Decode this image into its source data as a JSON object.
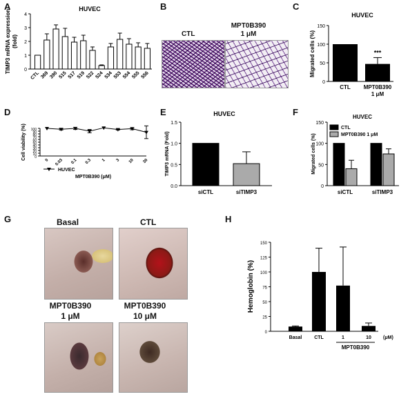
{
  "panels": {
    "A": {
      "letter": "A"
    },
    "B": {
      "letter": "B"
    },
    "C": {
      "letter": "C"
    },
    "D": {
      "letter": "D"
    },
    "E": {
      "letter": "E"
    },
    "F": {
      "letter": "F"
    },
    "G": {
      "letter": "G"
    },
    "H": {
      "letter": "H"
    }
  },
  "panelB": {
    "ctl_label": "CTL",
    "mpt_label": "MPT0B390",
    "mpt_dose": "1 μM"
  },
  "panelG": {
    "basal": "Basal",
    "ctl": "CTL",
    "mpt1_name": "MPT0B390",
    "mpt1_dose": "1 μM",
    "mpt10_name": "MPT0B390",
    "mpt10_dose": "10 μM"
  },
  "colors": {
    "bar_white": "#ffffff",
    "bar_black": "#000000",
    "bar_gray": "#aaaaaa"
  },
  "chart_data": [
    {
      "id": "A",
      "type": "bar",
      "title": "HUVEC",
      "ylabel": "TIMP3 mRNA expression (fold)",
      "ylabel_lines": [
        "TIMP3 mRNA expression",
        "(fold)"
      ],
      "ylim": [
        0,
        4
      ],
      "yticks": [
        0,
        1,
        2,
        3,
        4
      ],
      "categories": [
        "CTL",
        "369",
        "390",
        "515",
        "517",
        "519",
        "522",
        "524",
        "534",
        "553",
        "554",
        "555",
        "556"
      ],
      "values": [
        1.0,
        2.1,
        2.9,
        2.35,
        1.95,
        2.05,
        1.35,
        0.25,
        1.6,
        2.15,
        1.8,
        1.6,
        1.5
      ],
      "errors": [
        0.0,
        0.45,
        0.3,
        0.6,
        0.35,
        0.4,
        0.25,
        0.05,
        0.25,
        0.45,
        0.4,
        0.3,
        0.35
      ]
    },
    {
      "id": "C",
      "type": "bar",
      "title": "HUVEC",
      "ylabel": "Migrated cells (%)",
      "ylim": [
        0,
        150
      ],
      "yticks": [
        0,
        50,
        100,
        150
      ],
      "categories": [
        "CTL",
        "MPT0B390"
      ],
      "category_sub": [
        "",
        "1 μM"
      ],
      "values": [
        100,
        47
      ],
      "errors": [
        0,
        17
      ],
      "annotation": "***"
    },
    {
      "id": "D",
      "type": "line",
      "ylabel": "Cell viability (%)",
      "xlabel": "MPT0B390 (μM)",
      "ylim": [
        0,
        100
      ],
      "yticks": [
        0,
        10,
        20,
        30,
        40,
        50,
        60,
        70,
        80,
        90,
        100
      ],
      "x": [
        "0",
        "0.03",
        "0.1",
        "0.3",
        "1",
        "3",
        "10",
        "30"
      ],
      "values": [
        100,
        97,
        100,
        90,
        102,
        96,
        99,
        86
      ],
      "errors": [
        0,
        3,
        4,
        6,
        0,
        2,
        4,
        23
      ],
      "legend": "HUVEC"
    },
    {
      "id": "E",
      "type": "bar",
      "title": "HUVEC",
      "ylabel": "TIMP3 mRNA (Fold)",
      "ylim": [
        0,
        1.5
      ],
      "yticks": [
        "0.0",
        "0.5",
        "1.0",
        "1.5"
      ],
      "categories": [
        "siCTL",
        "siTIMP3"
      ],
      "values": [
        1.0,
        0.52
      ],
      "errors": [
        0,
        0.28
      ]
    },
    {
      "id": "F",
      "type": "bar",
      "title": "HUVEC",
      "ylabel": "Migrated cells (%)",
      "ylim": [
        0,
        150
      ],
      "yticks": [
        0,
        50,
        100,
        150
      ],
      "categories": [
        "siCTL",
        "siTIMP3"
      ],
      "series": [
        {
          "name": "CTL",
          "values": [
            100,
            100
          ],
          "errors": [
            0,
            0
          ]
        },
        {
          "name": "MPT0B390 1 μM",
          "values": [
            40,
            75
          ],
          "errors": [
            20,
            12
          ]
        }
      ]
    },
    {
      "id": "H",
      "type": "bar",
      "ylabel": "Hemoglobin (%)",
      "ylim": [
        0,
        150
      ],
      "yticks": [
        0,
        25,
        50,
        75,
        100,
        125,
        150
      ],
      "categories": [
        "Basal",
        "CTL",
        "1",
        "10"
      ],
      "values": [
        8,
        100,
        77,
        9
      ],
      "errors": [
        1,
        40,
        65,
        5
      ],
      "group_label": "MPT0B390",
      "unit": "(μM)"
    }
  ]
}
